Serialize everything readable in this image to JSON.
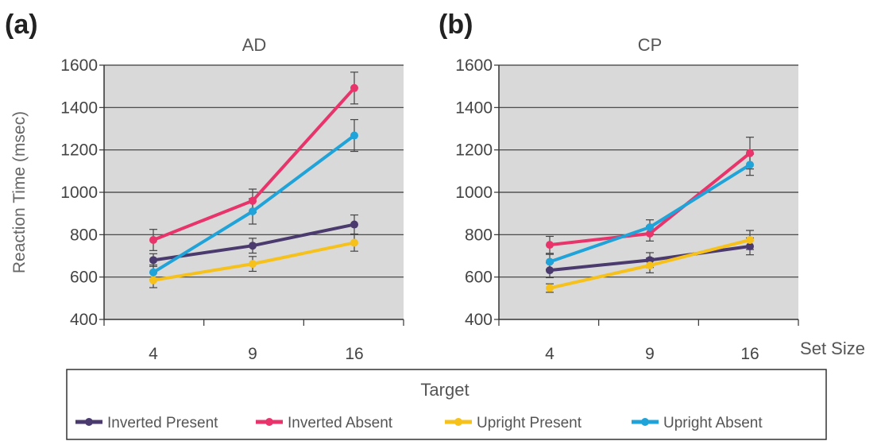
{
  "chart_data": [
    {
      "type": "line",
      "panel_label": "(a)",
      "title": "AD",
      "ylabel": "Reaction Time (msec)",
      "xlabel": "Set Size",
      "categories": [
        "4",
        "9",
        "16"
      ],
      "ylim": [
        400,
        1600
      ],
      "yticks": [
        "400",
        "600",
        "800",
        "1000",
        "1200",
        "1400",
        "1600"
      ],
      "grid": true,
      "series": [
        {
          "name": "Inverted Present",
          "values": [
            680,
            748,
            848
          ],
          "errors": [
            30,
            35,
            45
          ]
        },
        {
          "name": "Inverted Absent",
          "values": [
            775,
            960,
            1492
          ],
          "errors": [
            50,
            55,
            75
          ]
        },
        {
          "name": "Upright Present",
          "values": [
            585,
            662,
            762
          ],
          "errors": [
            35,
            35,
            40
          ]
        },
        {
          "name": "Upright Absent",
          "values": [
            622,
            910,
            1268
          ],
          "errors": [
            35,
            60,
            75
          ]
        }
      ]
    },
    {
      "type": "line",
      "panel_label": "(b)",
      "title": "CP",
      "ylabel": "",
      "xlabel": "Set Size",
      "categories": [
        "4",
        "9",
        "16"
      ],
      "ylim": [
        400,
        1600
      ],
      "yticks": [
        "400",
        "600",
        "800",
        "1000",
        "1200",
        "1400",
        "1600"
      ],
      "grid": true,
      "series": [
        {
          "name": "Inverted Present",
          "values": [
            632,
            680,
            745
          ],
          "errors": [
            35,
            35,
            40
          ]
        },
        {
          "name": "Inverted Absent",
          "values": [
            752,
            805,
            1185
          ],
          "errors": [
            40,
            35,
            75
          ]
        },
        {
          "name": "Upright Present",
          "values": [
            548,
            655,
            775
          ],
          "errors": [
            20,
            35,
            45
          ]
        },
        {
          "name": "Upright Absent",
          "values": [
            672,
            835,
            1130
          ],
          "errors": [
            35,
            35,
            50
          ]
        }
      ]
    }
  ],
  "legend": {
    "title": "Target",
    "entries": [
      {
        "label": "Inverted Present",
        "color": "#4a3a6e"
      },
      {
        "label": "Inverted Absent",
        "color": "#e8336b"
      },
      {
        "label": "Upright Present",
        "color": "#f5c11a"
      },
      {
        "label": "Upright Absent",
        "color": "#1fa3d8"
      }
    ]
  },
  "colors": {
    "plot_bg": "#d9d9d9",
    "grid": "#3a3a3a",
    "axis": "#333333",
    "error_bar": "#444444"
  }
}
